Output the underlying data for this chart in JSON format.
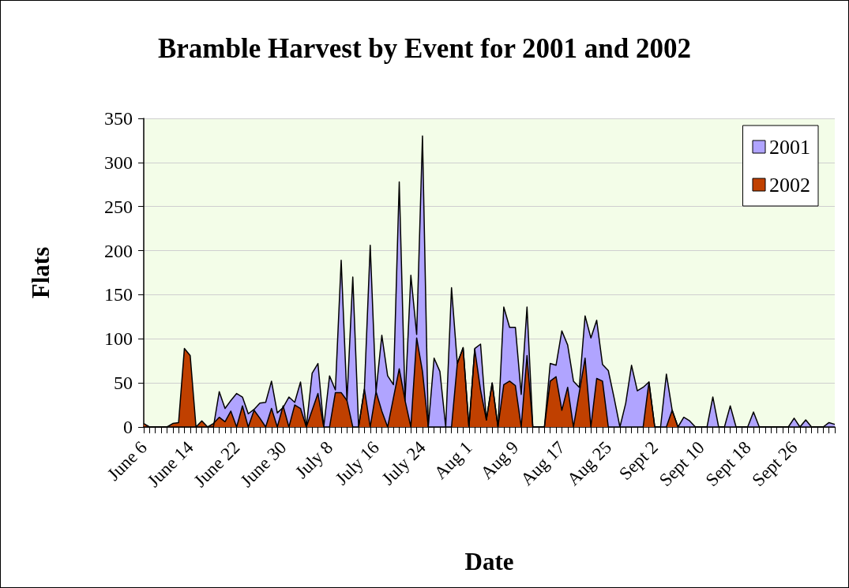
{
  "chart_data": {
    "type": "area",
    "title": "Bramble Harvest by Event for 2001 and 2002",
    "xlabel": "Date",
    "ylabel": "Flats",
    "categories": [
      "June 6",
      null,
      null,
      null,
      null,
      null,
      null,
      null,
      "June 14",
      null,
      null,
      null,
      null,
      null,
      null,
      null,
      "June 22",
      null,
      null,
      null,
      null,
      null,
      null,
      null,
      "June 30",
      null,
      null,
      null,
      null,
      null,
      null,
      null,
      "July 8",
      null,
      null,
      null,
      null,
      null,
      null,
      null,
      "July 16",
      null,
      null,
      null,
      null,
      null,
      null,
      null,
      "July 24",
      null,
      null,
      null,
      null,
      null,
      null,
      null,
      "Aug 1",
      null,
      null,
      null,
      null,
      null,
      null,
      null,
      "Aug 9",
      null,
      null,
      null,
      null,
      null,
      null,
      null,
      "Aug 17",
      null,
      null,
      null,
      null,
      null,
      null,
      null,
      "Aug 25",
      null,
      null,
      null,
      null,
      null,
      null,
      null,
      "Sept 2",
      null,
      null,
      null,
      null,
      null,
      null,
      null,
      "Sept 10",
      null,
      null,
      null,
      null,
      null,
      null,
      null,
      "Sept 18",
      null,
      null,
      null,
      null,
      null,
      null,
      null,
      "Sept 26",
      null,
      null,
      null,
      null,
      null,
      null,
      null
    ],
    "series": [
      {
        "name": "2001",
        "color": "#b0a4ff",
        "values": [
          0,
          0,
          0,
          0,
          0,
          0,
          0,
          0,
          0,
          0,
          0,
          0,
          0,
          40,
          21,
          30,
          38,
          34,
          15,
          20,
          27,
          28,
          52,
          16,
          22,
          34,
          28,
          51,
          0,
          61,
          72,
          0,
          58,
          42,
          189,
          30,
          170,
          0,
          43,
          206,
          40,
          104,
          58,
          48,
          278,
          30,
          172,
          105,
          330,
          0,
          78,
          63,
          0,
          158,
          72,
          90,
          0,
          89,
          94,
          8,
          50,
          0,
          136,
          113,
          113,
          37,
          136,
          0,
          0,
          0,
          72,
          70,
          109,
          93,
          52,
          45,
          126,
          101,
          121,
          71,
          64,
          33,
          0,
          27,
          70,
          41,
          45,
          51,
          0,
          0,
          60,
          19,
          0,
          11,
          7,
          0,
          0,
          0,
          34,
          0,
          0,
          24,
          0,
          0,
          0,
          17,
          0,
          0,
          0,
          0,
          0,
          0,
          10,
          0,
          8,
          0,
          0,
          0,
          5,
          3
        ]
      },
      {
        "name": "2002",
        "color": "#c04000",
        "values": [
          4,
          0,
          0,
          0,
          0,
          4,
          5,
          89,
          81,
          0,
          7,
          0,
          4,
          11,
          6,
          18,
          0,
          24,
          0,
          19,
          10,
          0,
          21,
          0,
          24,
          0,
          25,
          21,
          0,
          19,
          38,
          0,
          0,
          39,
          39,
          30,
          0,
          0,
          43,
          0,
          40,
          18,
          0,
          33,
          66,
          30,
          0,
          101,
          63,
          0,
          0,
          0,
          0,
          0,
          72,
          90,
          0,
          88,
          42,
          8,
          50,
          0,
          48,
          52,
          47,
          0,
          81,
          0,
          0,
          0,
          52,
          57,
          19,
          45,
          0,
          39,
          78,
          0,
          55,
          52,
          0,
          0,
          0,
          0,
          0,
          0,
          0,
          51,
          0,
          0,
          0,
          19,
          0,
          0,
          0,
          0,
          0,
          0,
          0,
          0,
          0,
          0,
          0,
          0,
          0,
          0,
          0,
          0,
          0,
          0,
          0,
          0,
          0,
          0,
          0,
          0,
          0,
          0,
          0,
          0
        ]
      }
    ],
    "ylim": [
      0,
      350
    ],
    "yticks": [
      0,
      50,
      100,
      150,
      200,
      250,
      300,
      350
    ],
    "grid": "y",
    "legend": "top right"
  }
}
